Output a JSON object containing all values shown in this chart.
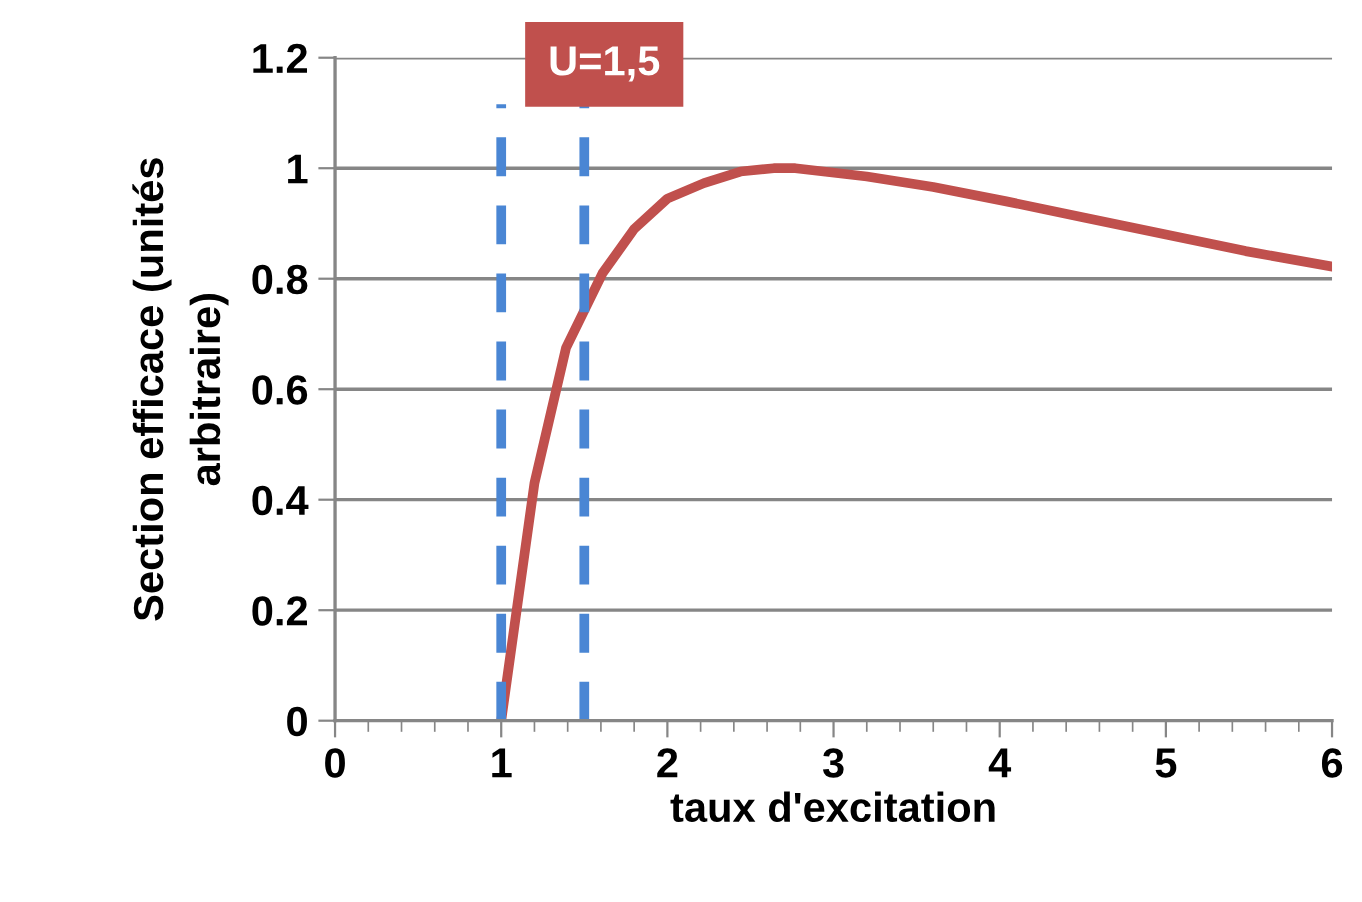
{
  "chart_data": {
    "type": "line",
    "xlabel": "taux d'excitation",
    "ylabel": "Section efficace (unités\narbitraire)",
    "xlim": [
      0,
      6
    ],
    "xticks": [
      0,
      1,
      2,
      3,
      4,
      5,
      6
    ],
    "ylim": [
      0,
      1.2
    ],
    "yticks": [
      0,
      0.2,
      0.4,
      0.6,
      0.8,
      1,
      1.2
    ],
    "grid": "y",
    "marker": "none",
    "line_style": "solid",
    "series": [
      {
        "color": "#c0504d",
        "x": [
          1,
          1.2,
          1.39,
          1.61,
          1.8,
          2.0,
          2.22,
          2.44,
          2.64,
          2.77,
          3.2,
          3.6,
          4.04,
          4.52,
          5.0,
          5.48,
          6.0
        ],
        "values": [
          0,
          0.43,
          0.675,
          0.81,
          0.89,
          0.945,
          0.973,
          0.994,
          1.0,
          1.0,
          0.985,
          0.966,
          0.94,
          0.91,
          0.88,
          0.85,
          0.822
        ]
      }
    ],
    "ref_lines": [
      {
        "axis": "x",
        "value": 1,
        "color": "#4a86d4",
        "line_style": "dashed"
      },
      {
        "axis": "x",
        "value": 1.5,
        "color": "#4a86d4",
        "line_style": "dashed"
      }
    ],
    "annotations": [
      "U=1,5"
    ]
  }
}
